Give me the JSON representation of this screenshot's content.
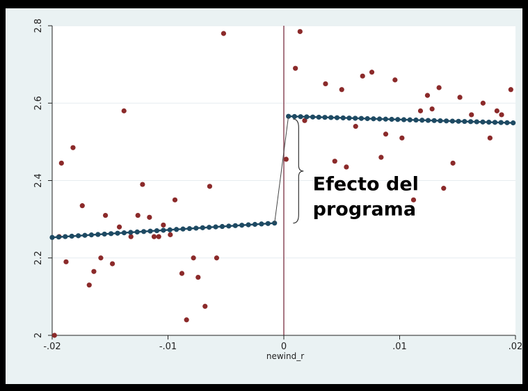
{
  "chart_data": {
    "type": "scatter",
    "xlabel": "newind_r",
    "ylabel": "",
    "xlim": [
      -0.02,
      0.02
    ],
    "ylim": [
      2.0,
      2.8
    ],
    "x_ticks": [
      -0.02,
      -0.01,
      0,
      0.01,
      0.02
    ],
    "x_tick_labels": [
      "-.02",
      "-.01",
      "0",
      ".01",
      ".02"
    ],
    "y_ticks": [
      2.0,
      2.2,
      2.4,
      2.6,
      2.8
    ],
    "y_tick_labels": [
      "2",
      "2.2",
      "2.4",
      "2.6",
      "2.8"
    ],
    "grid": "horizontal",
    "cutoff": 0,
    "annotation": [
      "Efecto del",
      "programa"
    ],
    "colors": {
      "scatter": "#8b2a2a",
      "fit": "#1e4a63",
      "cutoff": "#8c4a5a",
      "plot_bg": "#ffffff",
      "frame_bg": "#eaf2f3",
      "grid": "#e6ecef"
    },
    "series": [
      {
        "kind": "scatter",
        "points": [
          [
            -0.0198,
            2.0
          ],
          [
            -0.0194,
            2.255
          ],
          [
            -0.0192,
            2.445
          ],
          [
            -0.0188,
            2.19
          ],
          [
            -0.0182,
            2.485
          ],
          [
            -0.0174,
            2.335
          ],
          [
            -0.0168,
            2.13
          ],
          [
            -0.0164,
            2.165
          ],
          [
            -0.0158,
            2.2
          ],
          [
            -0.0154,
            2.31
          ],
          [
            -0.0148,
            2.185
          ],
          [
            -0.0142,
            2.28
          ],
          [
            -0.0138,
            2.58
          ],
          [
            -0.0132,
            2.255
          ],
          [
            -0.0126,
            2.31
          ],
          [
            -0.0122,
            2.39
          ],
          [
            -0.0116,
            2.305
          ],
          [
            -0.0112,
            2.255
          ],
          [
            -0.0108,
            2.255
          ],
          [
            -0.0104,
            2.285
          ],
          [
            -0.0098,
            2.26
          ],
          [
            -0.0094,
            2.35
          ],
          [
            -0.0088,
            2.16
          ],
          [
            -0.0084,
            2.04
          ],
          [
            -0.0078,
            2.2
          ],
          [
            -0.0074,
            2.15
          ],
          [
            -0.0068,
            2.075
          ],
          [
            -0.0064,
            2.385
          ],
          [
            -0.0058,
            2.2
          ],
          [
            -0.0052,
            2.78
          ],
          [
            0.0002,
            2.455
          ],
          [
            0.001,
            2.69
          ],
          [
            0.0014,
            2.785
          ],
          [
            0.0018,
            2.555
          ],
          [
            0.0036,
            2.65
          ],
          [
            0.0044,
            2.45
          ],
          [
            0.005,
            2.635
          ],
          [
            0.0054,
            2.435
          ],
          [
            0.0062,
            2.54
          ],
          [
            0.0068,
            2.67
          ],
          [
            0.0076,
            2.68
          ],
          [
            0.0084,
            2.46
          ],
          [
            0.0088,
            2.52
          ],
          [
            0.0096,
            2.66
          ],
          [
            0.0102,
            2.51
          ],
          [
            0.0112,
            2.35
          ],
          [
            0.0118,
            2.58
          ],
          [
            0.0124,
            2.62
          ],
          [
            0.0128,
            2.585
          ],
          [
            0.0134,
            2.64
          ],
          [
            0.0138,
            2.38
          ],
          [
            0.0146,
            2.445
          ],
          [
            0.0152,
            2.615
          ],
          [
            0.0162,
            2.57
          ],
          [
            0.0172,
            2.6
          ],
          [
            0.0178,
            2.51
          ],
          [
            0.0184,
            2.58
          ],
          [
            0.0188,
            2.57
          ],
          [
            0.0196,
            2.635
          ]
        ]
      },
      {
        "kind": "fit-left",
        "x_start": -0.02,
        "x_end": -0.0008,
        "y_start": 2.253,
        "y_end": 2.29,
        "n": 35
      },
      {
        "kind": "fit-right",
        "x_start": 0.0004,
        "x_end": 0.0198,
        "y_start": 2.566,
        "y_end": 2.549,
        "n": 38
      }
    ]
  }
}
